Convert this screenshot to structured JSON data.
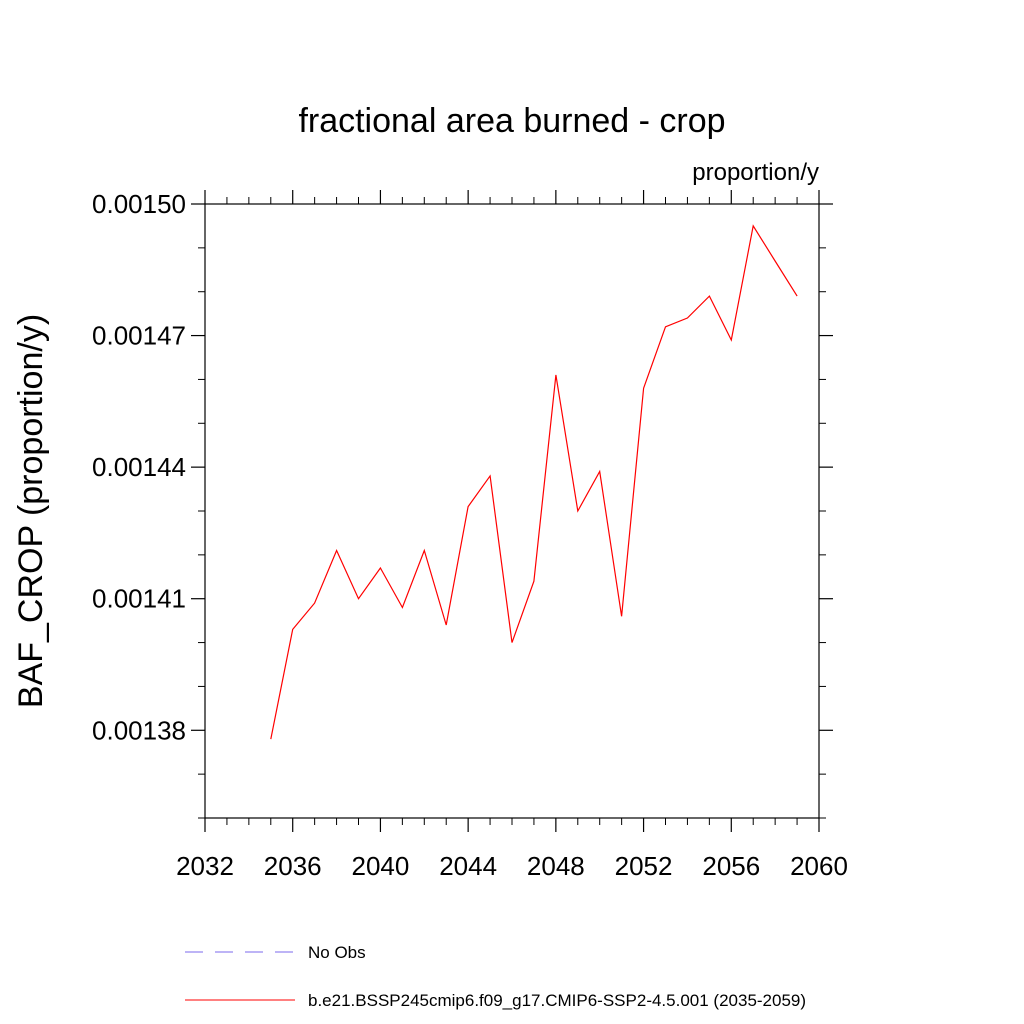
{
  "chart_data": {
    "type": "line",
    "title": "fractional area burned - crop",
    "units_label": "proportion/y",
    "ylabel": "BAF_CROP  (proportion/y)",
    "xlabel": "",
    "xlim": [
      2032,
      2060
    ],
    "ylim": [
      0.00136,
      0.0015
    ],
    "x_ticks": [
      2032,
      2036,
      2040,
      2044,
      2048,
      2052,
      2056,
      2060
    ],
    "x_tick_labels": [
      "2032",
      "2036",
      "2040",
      "2044",
      "2048",
      "2052",
      "2056",
      "2060"
    ],
    "x_minor_step": 1,
    "y_ticks": [
      0.00138,
      0.00141,
      0.00144,
      0.00147,
      0.0015
    ],
    "y_tick_labels": [
      "0.00138",
      "0.00141",
      "0.00144",
      "0.00147",
      "0.00150"
    ],
    "y_minor_step": 1e-05,
    "grid": false,
    "legend_position": "bottom",
    "series": [
      {
        "name": "b.e21.BSSP245cmip6.f09_g17.CMIP6-SSP2-4.5.001 (2035-2059)",
        "color": "#ff0000",
        "dash": "solid",
        "x": [
          2035,
          2036,
          2037,
          2038,
          2039,
          2040,
          2041,
          2042,
          2043,
          2044,
          2045,
          2046,
          2047,
          2048,
          2049,
          2050,
          2051,
          2052,
          2053,
          2054,
          2055,
          2056,
          2057,
          2058,
          2059
        ],
        "values": [
          0.001378,
          0.001403,
          0.001409,
          0.001421,
          0.00141,
          0.001417,
          0.001408,
          0.001421,
          0.001404,
          0.001431,
          0.001438,
          0.0014,
          0.001414,
          0.001461,
          0.00143,
          0.001439,
          0.001406,
          0.001458,
          0.001472,
          0.001474,
          0.001479,
          0.001469,
          0.001495,
          0.001487,
          0.001479
        ]
      }
    ],
    "legend": [
      {
        "label": "No Obs",
        "color": "#7b68ee",
        "dash": "dashed"
      },
      {
        "label": "b.e21.BSSP245cmip6.f09_g17.CMIP6-SSP2-4.5.001 (2035-2059)",
        "color": "#ff0000",
        "dash": "solid"
      }
    ]
  }
}
